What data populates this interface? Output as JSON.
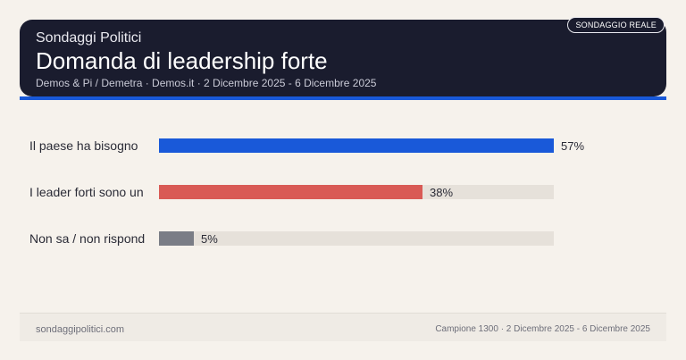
{
  "header": {
    "kicker": "Sondaggi Politici",
    "title": "Domanda di leadership forte",
    "subtitle": "Demos & Pi / Demetra · Demos.it · 2 Dicembre 2025 - 6 Dicembre 2025",
    "badge": "SONDAGGIO REALE"
  },
  "colors": {
    "header_bg": "#1a1c2e",
    "accent": "#1959d9",
    "track": "#e6e1da",
    "page_bg": "#f6f2ec"
  },
  "chart_data": {
    "type": "bar",
    "orientation": "horizontal",
    "categories": [
      "Il paese ha bisogno",
      "I leader forti sono un",
      "Non sa / non rispond"
    ],
    "values": [
      57,
      38,
      5
    ],
    "value_labels": [
      "57%",
      "38%",
      "5%"
    ],
    "colors": [
      "#1959d9",
      "#d95a55",
      "#7a7d86"
    ],
    "xlim": [
      0,
      57
    ],
    "unit": "%",
    "grid": false,
    "legend": "none"
  },
  "footer": {
    "site": "sondaggipolitici.com",
    "info": "Campione 1300 · 2 Dicembre 2025 - 6 Dicembre 2025"
  }
}
